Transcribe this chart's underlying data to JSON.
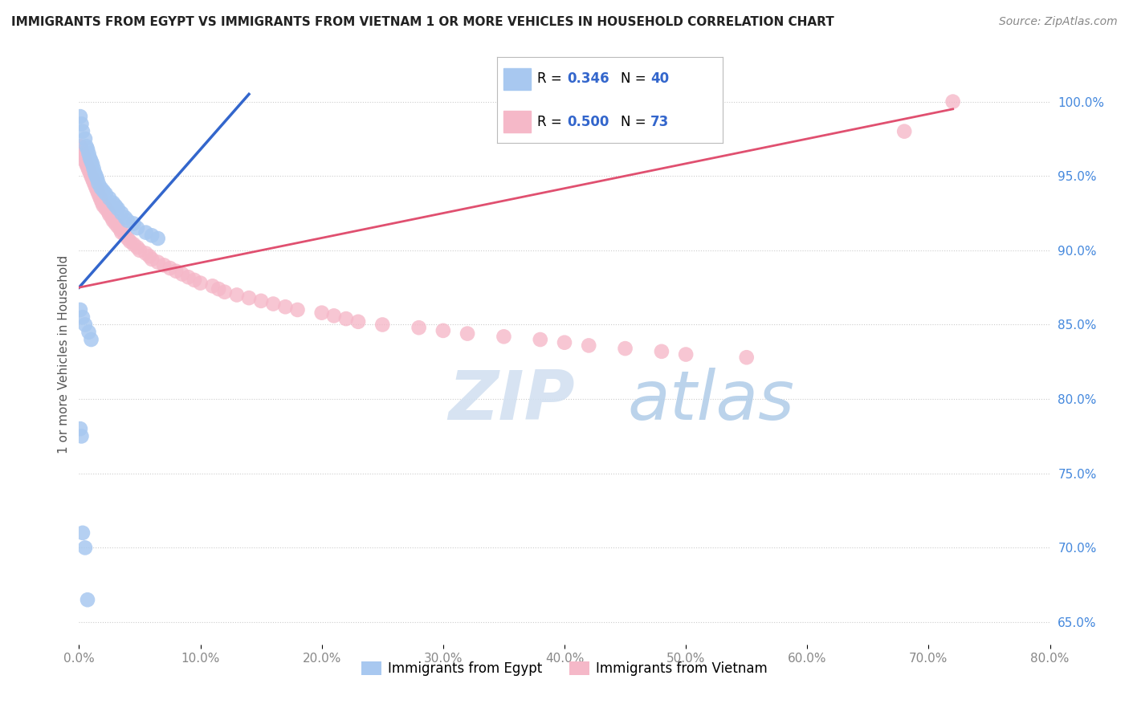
{
  "title": "IMMIGRANTS FROM EGYPT VS IMMIGRANTS FROM VIETNAM 1 OR MORE VEHICLES IN HOUSEHOLD CORRELATION CHART",
  "source": "Source: ZipAtlas.com",
  "ylabel": "1 or more Vehicles in Household",
  "legend_label_egypt": "Immigrants from Egypt",
  "legend_label_vietnam": "Immigrants from Vietnam",
  "R_egypt": 0.346,
  "N_egypt": 40,
  "R_vietnam": 0.5,
  "N_vietnam": 73,
  "color_egypt": "#A8C8F0",
  "color_vietnam": "#F5B8C8",
  "trendline_color_egypt": "#3366CC",
  "trendline_color_vietnam": "#E05070",
  "xlim": [
    0.0,
    0.8
  ],
  "ylim": [
    0.635,
    1.025
  ],
  "xtick_vals": [
    0.0,
    0.1,
    0.2,
    0.3,
    0.4,
    0.5,
    0.6,
    0.7,
    0.8
  ],
  "xtick_labels": [
    "0.0%",
    "10.0%",
    "20.0%",
    "30.0%",
    "40.0%",
    "50.0%",
    "60.0%",
    "70.0%",
    "80.0%"
  ],
  "ytick_vals": [
    0.65,
    0.7,
    0.75,
    0.8,
    0.85,
    0.9,
    0.95,
    1.0
  ],
  "ytick_labels": [
    "65.0%",
    "70.0%",
    "75.0%",
    "80.0%",
    "85.0%",
    "90.0%",
    "95.0%",
    "100.0%"
  ],
  "egypt_x": [
    0.001,
    0.002,
    0.003,
    0.005,
    0.006,
    0.007,
    0.008,
    0.009,
    0.01,
    0.011,
    0.012,
    0.013,
    0.014,
    0.015,
    0.016,
    0.018,
    0.02,
    0.022,
    0.025,
    0.028,
    0.03,
    0.032,
    0.035,
    0.038,
    0.04,
    0.045,
    0.048,
    0.055,
    0.06,
    0.065,
    0.001,
    0.003,
    0.005,
    0.008,
    0.01,
    0.001,
    0.002,
    0.003,
    0.005,
    0.007
  ],
  "egypt_y": [
    0.99,
    0.985,
    0.98,
    0.975,
    0.97,
    0.968,
    0.965,
    0.962,
    0.96,
    0.958,
    0.955,
    0.952,
    0.95,
    0.948,
    0.945,
    0.942,
    0.94,
    0.938,
    0.935,
    0.932,
    0.93,
    0.928,
    0.925,
    0.922,
    0.92,
    0.918,
    0.915,
    0.912,
    0.91,
    0.908,
    0.86,
    0.855,
    0.85,
    0.845,
    0.84,
    0.78,
    0.775,
    0.71,
    0.7,
    0.665
  ],
  "vietnam_x": [
    0.001,
    0.002,
    0.003,
    0.004,
    0.005,
    0.006,
    0.007,
    0.008,
    0.009,
    0.01,
    0.011,
    0.012,
    0.013,
    0.014,
    0.015,
    0.016,
    0.017,
    0.018,
    0.019,
    0.02,
    0.022,
    0.024,
    0.025,
    0.027,
    0.028,
    0.03,
    0.032,
    0.034,
    0.035,
    0.038,
    0.04,
    0.042,
    0.045,
    0.048,
    0.05,
    0.055,
    0.058,
    0.06,
    0.065,
    0.07,
    0.075,
    0.08,
    0.085,
    0.09,
    0.095,
    0.1,
    0.11,
    0.115,
    0.12,
    0.13,
    0.14,
    0.15,
    0.16,
    0.17,
    0.18,
    0.2,
    0.21,
    0.22,
    0.23,
    0.25,
    0.28,
    0.3,
    0.32,
    0.35,
    0.38,
    0.4,
    0.42,
    0.45,
    0.48,
    0.5,
    0.55,
    0.68,
    0.72
  ],
  "vietnam_y": [
    0.97,
    0.968,
    0.965,
    0.963,
    0.96,
    0.958,
    0.956,
    0.954,
    0.952,
    0.95,
    0.948,
    0.946,
    0.944,
    0.942,
    0.94,
    0.938,
    0.936,
    0.934,
    0.932,
    0.93,
    0.928,
    0.926,
    0.924,
    0.922,
    0.92,
    0.918,
    0.916,
    0.914,
    0.912,
    0.91,
    0.908,
    0.906,
    0.904,
    0.902,
    0.9,
    0.898,
    0.896,
    0.894,
    0.892,
    0.89,
    0.888,
    0.886,
    0.884,
    0.882,
    0.88,
    0.878,
    0.876,
    0.874,
    0.872,
    0.87,
    0.868,
    0.866,
    0.864,
    0.862,
    0.86,
    0.858,
    0.856,
    0.854,
    0.852,
    0.85,
    0.848,
    0.846,
    0.844,
    0.842,
    0.84,
    0.838,
    0.836,
    0.834,
    0.832,
    0.83,
    0.828,
    0.98,
    1.0
  ],
  "watermark_zip": "ZIP",
  "watermark_atlas": "atlas",
  "background_color": "#FFFFFF",
  "grid_color": "#CCCCCC",
  "tick_label_color_y": "#4488DD",
  "tick_label_color_x": "#888888"
}
